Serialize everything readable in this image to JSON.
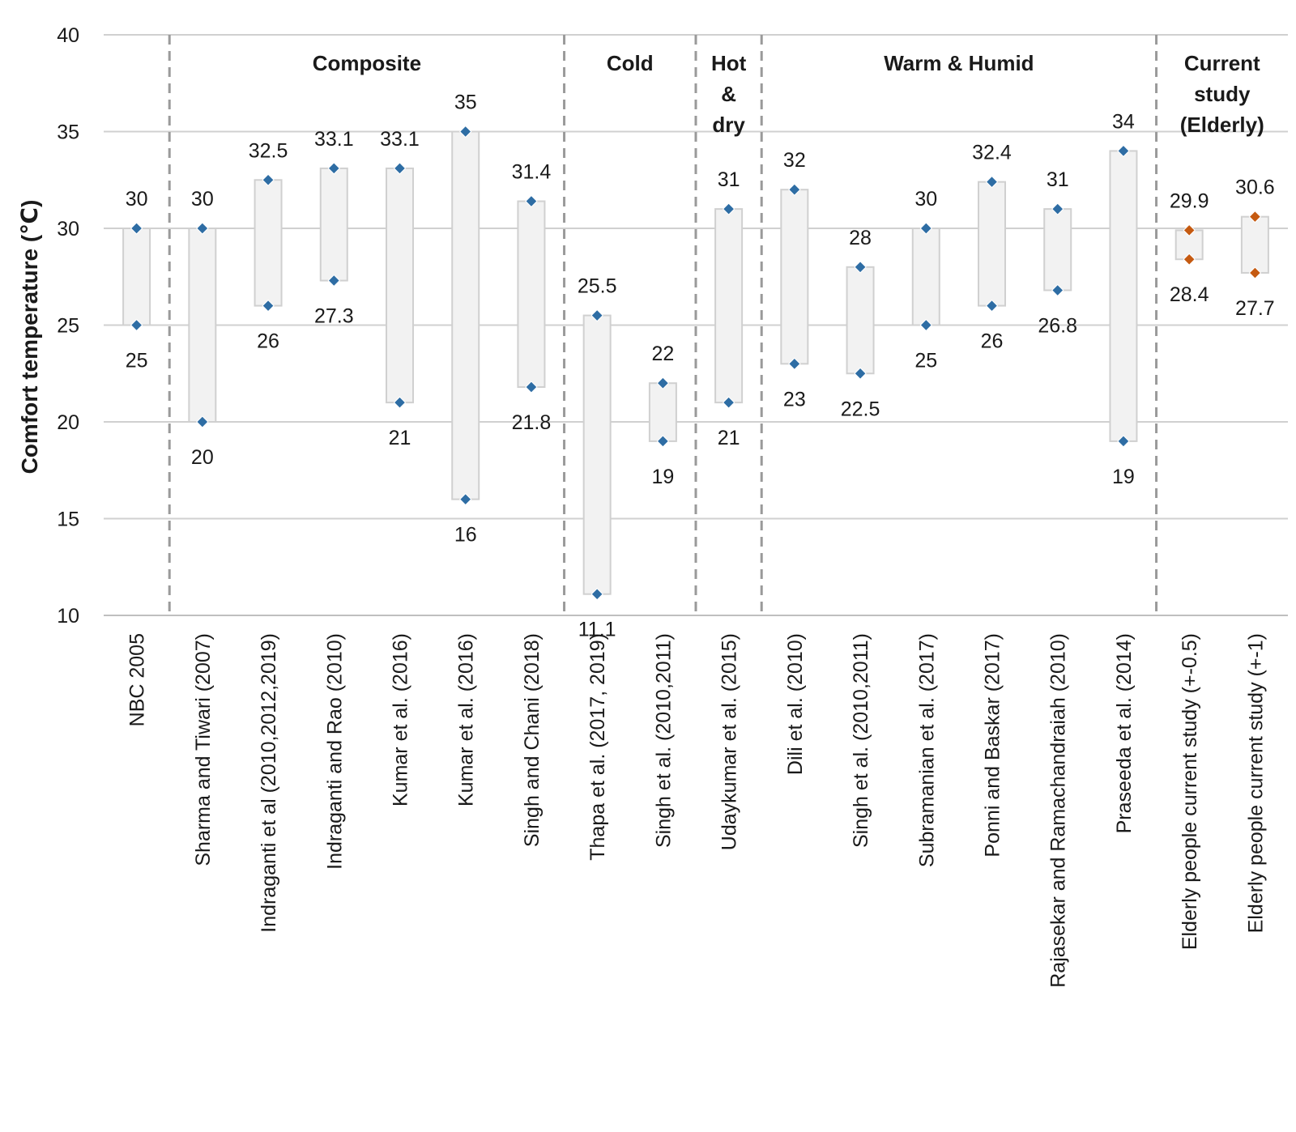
{
  "chart_data": {
    "type": "range",
    "ylabel": "Comfort temperature (℃)",
    "ylim": [
      10,
      40
    ],
    "yticks": [
      10,
      15,
      20,
      25,
      30,
      35,
      40
    ],
    "grid": true,
    "categories": [
      {
        "label": "NBC 2005",
        "low": 25,
        "high": 30,
        "low_label": "25",
        "high_label": "30",
        "color": "#2e6da4"
      },
      {
        "label": "Sharma and Tiwari (2007)",
        "low": 20,
        "high": 30,
        "low_label": "20",
        "high_label": "30",
        "color": "#2e6da4"
      },
      {
        "label": "Indraganti et al (2010,2012,2019)",
        "low": 26,
        "high": 32.5,
        "low_label": "26",
        "high_label": "32.5",
        "color": "#2e6da4"
      },
      {
        "label": "Indraganti and Rao (2010)",
        "low": 27.3,
        "high": 33.1,
        "low_label": "27.3",
        "high_label": "33.1",
        "color": "#2e6da4"
      },
      {
        "label": "Kumar et al. (2016)",
        "low": 21,
        "high": 33.1,
        "low_label": "21",
        "high_label": "33.1",
        "color": "#2e6da4"
      },
      {
        "label": "Kumar et al. (2016)",
        "low": 16,
        "high": 35,
        "low_label": "16",
        "high_label": "35",
        "color": "#2e6da4"
      },
      {
        "label": "Singh and Chani (2018)",
        "low": 21.8,
        "high": 31.4,
        "low_label": "21.8",
        "high_label": "31.4",
        "color": "#2e6da4"
      },
      {
        "label": "Thapa et al. (2017, 2019)",
        "low": 11.1,
        "high": 25.5,
        "low_label": "11.1",
        "high_label": "25.5",
        "color": "#2e6da4"
      },
      {
        "label": "Singh et al. (2010,2011)",
        "low": 19,
        "high": 22,
        "low_label": "19",
        "high_label": "22",
        "color": "#2e6da4"
      },
      {
        "label": "Udaykumar et al. (2015)",
        "low": 21,
        "high": 31,
        "low_label": "21",
        "high_label": "31",
        "color": "#2e6da4"
      },
      {
        "label": "Dili et al. (2010)",
        "low": 23,
        "high": 32,
        "low_label": "23",
        "high_label": "32",
        "color": "#2e6da4"
      },
      {
        "label": "Singh et al. (2010,2011)",
        "low": 22.5,
        "high": 28,
        "low_label": "22.5",
        "high_label": "28",
        "color": "#2e6da4"
      },
      {
        "label": "Subramanian et al. (2017)",
        "low": 25,
        "high": 30,
        "low_label": "25",
        "high_label": "30",
        "color": "#2e6da4"
      },
      {
        "label": "Ponni and Baskar (2017)",
        "low": 26,
        "high": 32.4,
        "low_label": "26",
        "high_label": "32.4",
        "color": "#2e6da4"
      },
      {
        "label": "Rajasekar and Ramachandraiah (2010)",
        "low": 26.8,
        "high": 31,
        "low_label": "26.8",
        "high_label": "31",
        "color": "#2e6da4"
      },
      {
        "label": "Praseeda et al. (2014)",
        "low": 19,
        "high": 34,
        "low_label": "19",
        "high_label": "34",
        "color": "#2e6da4"
      },
      {
        "label": "Elderly people current study (+-0.5)",
        "low": 28.4,
        "high": 29.9,
        "low_label": "28.4",
        "high_label": "29.9",
        "color": "#c55a11"
      },
      {
        "label": "Elderly people current study (+-1)",
        "low": 27.7,
        "high": 30.6,
        "low_label": "27.7",
        "high_label": "30.6",
        "color": "#c55a11"
      }
    ],
    "groups": [
      {
        "lines": [
          "Composite"
        ],
        "from": 1,
        "to": 6
      },
      {
        "lines": [
          "Cold"
        ],
        "from": 7,
        "to": 8
      },
      {
        "lines": [
          "Hot",
          "&",
          "dry"
        ],
        "from": 9,
        "to": 9
      },
      {
        "lines": [
          "Warm & Humid"
        ],
        "from": 10,
        "to": 15
      },
      {
        "lines": [
          "Current",
          "study",
          "(Elderly)"
        ],
        "from": 16,
        "to": 17
      }
    ],
    "group_separators_after": [
      0,
      6,
      8,
      9,
      15
    ]
  }
}
